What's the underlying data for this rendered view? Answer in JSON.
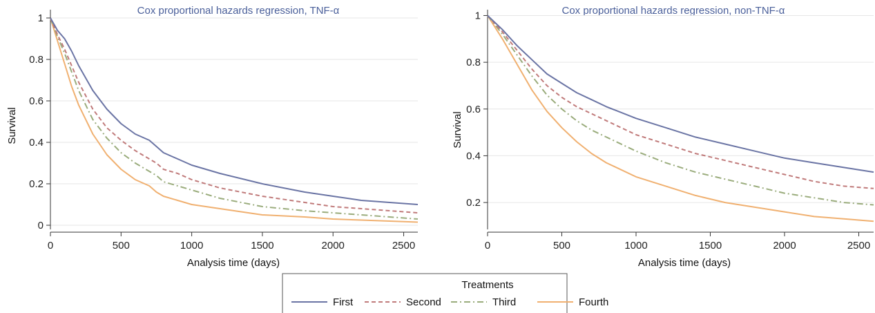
{
  "chart_data": [
    {
      "type": "line",
      "title": "Cox proportional hazards regression, TNF-α",
      "xlabel": "Analysis time (days)",
      "ylabel": "Survival",
      "xlim": [
        0,
        2600
      ],
      "ylim": [
        -0.02,
        1.04
      ],
      "xticks": [
        0,
        500,
        1000,
        1500,
        2000,
        2500
      ],
      "xtick_labels": [
        "0",
        "500",
        "1000",
        "1500",
        "2000",
        "2500"
      ],
      "yticks": [
        0,
        0.2,
        0.4,
        0.6,
        0.8,
        1
      ],
      "ytick_labels": [
        "0",
        "0.2",
        "0.4",
        "0.6",
        "0.8",
        "1"
      ],
      "grid": true,
      "series": [
        {
          "name": "First",
          "x": [
            0,
            50,
            100,
            150,
            200,
            300,
            400,
            500,
            600,
            700,
            750,
            800,
            900,
            1000,
            1200,
            1500,
            1800,
            2000,
            2200,
            2400,
            2600
          ],
          "values": [
            1.0,
            0.94,
            0.9,
            0.84,
            0.77,
            0.65,
            0.56,
            0.49,
            0.44,
            0.41,
            0.38,
            0.35,
            0.32,
            0.29,
            0.25,
            0.2,
            0.16,
            0.14,
            0.12,
            0.11,
            0.1
          ]
        },
        {
          "name": "Second",
          "x": [
            0,
            50,
            100,
            150,
            200,
            300,
            400,
            500,
            600,
            700,
            750,
            800,
            900,
            1000,
            1200,
            1500,
            1800,
            2000,
            2200,
            2400,
            2600
          ],
          "values": [
            1.0,
            0.92,
            0.85,
            0.77,
            0.69,
            0.56,
            0.47,
            0.41,
            0.36,
            0.32,
            0.3,
            0.27,
            0.25,
            0.22,
            0.18,
            0.14,
            0.11,
            0.09,
            0.08,
            0.07,
            0.06
          ]
        },
        {
          "name": "Third",
          "x": [
            0,
            50,
            100,
            150,
            200,
            300,
            400,
            500,
            600,
            700,
            750,
            800,
            900,
            1000,
            1200,
            1500,
            1800,
            2000,
            2200,
            2400,
            2600
          ],
          "values": [
            1.0,
            0.91,
            0.83,
            0.74,
            0.65,
            0.51,
            0.42,
            0.35,
            0.3,
            0.26,
            0.24,
            0.21,
            0.19,
            0.17,
            0.13,
            0.09,
            0.07,
            0.06,
            0.05,
            0.04,
            0.03
          ]
        },
        {
          "name": "Fourth",
          "x": [
            0,
            50,
            100,
            150,
            200,
            300,
            400,
            500,
            600,
            700,
            750,
            800,
            900,
            1000,
            1200,
            1500,
            1800,
            2000,
            2200,
            2400,
            2600
          ],
          "values": [
            1.0,
            0.89,
            0.78,
            0.67,
            0.58,
            0.44,
            0.34,
            0.27,
            0.22,
            0.19,
            0.16,
            0.14,
            0.12,
            0.1,
            0.08,
            0.05,
            0.04,
            0.03,
            0.025,
            0.02,
            0.015
          ]
        }
      ]
    },
    {
      "type": "line",
      "title": "Cox proportional hazards regression, non-TNF-α",
      "xlabel": "Analysis time (days)",
      "ylabel": "Survival",
      "xlim": [
        0,
        2600
      ],
      "ylim": [
        0.085,
        1.025
      ],
      "xticks": [
        0,
        500,
        1000,
        1500,
        2000,
        2500
      ],
      "xtick_labels": [
        "0",
        "500",
        "1000",
        "1500",
        "2000",
        "2500"
      ],
      "yticks": [
        0.2,
        0.4,
        0.6,
        0.8,
        1
      ],
      "ytick_labels": [
        "0.2",
        "0.4",
        "0.6",
        "0.8",
        "1"
      ],
      "grid": true,
      "series": [
        {
          "name": "First",
          "x": [
            0,
            100,
            200,
            300,
            400,
            500,
            600,
            700,
            800,
            1000,
            1200,
            1400,
            1600,
            1800,
            2000,
            2200,
            2400,
            2600
          ],
          "values": [
            1.0,
            0.94,
            0.87,
            0.81,
            0.75,
            0.71,
            0.67,
            0.64,
            0.61,
            0.56,
            0.52,
            0.48,
            0.45,
            0.42,
            0.39,
            0.37,
            0.35,
            0.33
          ]
        },
        {
          "name": "Second",
          "x": [
            0,
            100,
            200,
            300,
            400,
            500,
            600,
            700,
            800,
            1000,
            1200,
            1400,
            1600,
            1800,
            2000,
            2200,
            2400,
            2600
          ],
          "values": [
            1.0,
            0.93,
            0.85,
            0.77,
            0.7,
            0.65,
            0.61,
            0.58,
            0.55,
            0.49,
            0.45,
            0.41,
            0.38,
            0.35,
            0.32,
            0.29,
            0.27,
            0.26
          ]
        },
        {
          "name": "Third",
          "x": [
            0,
            100,
            200,
            300,
            400,
            500,
            600,
            700,
            800,
            1000,
            1200,
            1400,
            1600,
            1800,
            2000,
            2200,
            2400,
            2600
          ],
          "values": [
            1.0,
            0.92,
            0.83,
            0.74,
            0.66,
            0.6,
            0.55,
            0.51,
            0.48,
            0.42,
            0.37,
            0.33,
            0.3,
            0.27,
            0.24,
            0.22,
            0.2,
            0.19
          ]
        },
        {
          "name": "Fourth",
          "x": [
            0,
            100,
            200,
            300,
            400,
            500,
            600,
            700,
            800,
            1000,
            1200,
            1400,
            1600,
            1800,
            2000,
            2200,
            2400,
            2600
          ],
          "values": [
            1.0,
            0.9,
            0.79,
            0.68,
            0.59,
            0.52,
            0.46,
            0.41,
            0.37,
            0.31,
            0.27,
            0.23,
            0.2,
            0.18,
            0.16,
            0.14,
            0.13,
            0.12
          ]
        }
      ]
    }
  ],
  "legend": {
    "title": "Treatments",
    "placement": "bottom-center",
    "items": [
      {
        "label": "First",
        "color": "#6a74a4",
        "dash": "solid"
      },
      {
        "label": "Second",
        "color": "#c07a7a",
        "dash": "dashed"
      },
      {
        "label": "Third",
        "color": "#9aac7c",
        "dash": "dash-dot"
      },
      {
        "label": "Fourth",
        "color": "#f0b070",
        "dash": "solid"
      }
    ]
  }
}
